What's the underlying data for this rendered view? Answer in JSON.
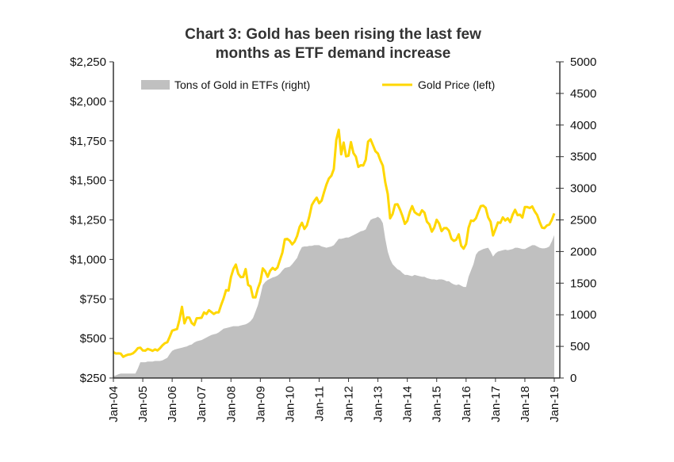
{
  "chart_data": {
    "type": "line+area",
    "title_lines": [
      "Chart 3: Gold has been rising the last few",
      "months as ETF demand increase"
    ],
    "x_ticks": [
      "Jan-04",
      "Jan-05",
      "Jan-06",
      "Jan-07",
      "Jan-08",
      "Jan-09",
      "Jan-10",
      "Jan-11",
      "Jan-12",
      "Jan-13",
      "Jan-14",
      "Jan-15",
      "Jan-16",
      "Jan-17",
      "Jan-18",
      "Jan-19"
    ],
    "x_range": [
      "Jan-04",
      "Jan-19"
    ],
    "y_left": {
      "ticks": [
        "$250",
        "$500",
        "$750",
        "$1,000",
        "$1,250",
        "$1,500",
        "$1,750",
        "$2,000",
        "$2,250"
      ],
      "range": [
        250,
        2250
      ]
    },
    "y_right": {
      "ticks": [
        "0",
        "500",
        "1000",
        "1500",
        "2000",
        "2500",
        "3000",
        "3500",
        "4000",
        "4500",
        "5000"
      ],
      "range": [
        0,
        5000
      ]
    },
    "legend_position": "top",
    "grid": false,
    "series": [
      {
        "name": "Tons of Gold in ETFs (right)",
        "kind": "area",
        "axis": "right",
        "color": "#c0c0c0",
        "frequency": "monthly from Jan-04",
        "values": [
          30,
          40,
          60,
          70,
          70,
          70,
          70,
          70,
          70,
          70,
          150,
          250,
          250,
          250,
          260,
          260,
          260,
          270,
          270,
          270,
          280,
          300,
          320,
          380,
          430,
          450,
          460,
          470,
          480,
          490,
          500,
          520,
          530,
          560,
          580,
          590,
          600,
          620,
          640,
          660,
          680,
          690,
          700,
          720,
          750,
          780,
          790,
          800,
          810,
          820,
          820,
          820,
          830,
          840,
          850,
          870,
          900,
          950,
          1050,
          1150,
          1300,
          1470,
          1520,
          1550,
          1570,
          1590,
          1600,
          1620,
          1650,
          1700,
          1740,
          1750,
          1760,
          1800,
          1850,
          1900,
          2000,
          2070,
          2080,
          2080,
          2090,
          2090,
          2100,
          2100,
          2100,
          2080,
          2070,
          2060,
          2070,
          2080,
          2100,
          2150,
          2200,
          2200,
          2210,
          2220,
          2220,
          2240,
          2260,
          2280,
          2300,
          2320,
          2330,
          2350,
          2430,
          2500,
          2520,
          2530,
          2550,
          2520,
          2450,
          2200,
          2000,
          1880,
          1800,
          1760,
          1720,
          1700,
          1660,
          1630,
          1630,
          1620,
          1610,
          1630,
          1620,
          1610,
          1600,
          1600,
          1580,
          1570,
          1560,
          1560,
          1550,
          1560,
          1560,
          1550,
          1530,
          1530,
          1500,
          1480,
          1470,
          1480,
          1460,
          1440,
          1440,
          1600,
          1700,
          1800,
          1950,
          2000,
          2020,
          2040,
          2050,
          2060,
          2000,
          1920,
          1970,
          2000,
          2010,
          2020,
          2030,
          2020,
          2030,
          2040,
          2060,
          2060,
          2050,
          2040,
          2040,
          2060,
          2080,
          2100,
          2100,
          2080,
          2060,
          2050,
          2050,
          2060,
          2080,
          2160,
          2260
        ]
      },
      {
        "name": "Gold Price (left)",
        "kind": "line",
        "axis": "left",
        "color": "#ffd700",
        "frequency": "monthly from Jan-04",
        "values": [
          414,
          405,
          406,
          404,
          384,
          392,
          398,
          400,
          406,
          420,
          439,
          442,
          424,
          423,
          434,
          429,
          422,
          431,
          424,
          438,
          456,
          470,
          476,
          510,
          549,
          555,
          560,
          620,
          700,
          596,
          633,
          632,
          598,
          585,
          628,
          629,
          631,
          665,
          655,
          679,
          667,
          655,
          665,
          665,
          712,
          754,
          806,
          803,
          889,
          940,
          968,
          909,
          888,
          889,
          939,
          839,
          829,
          760,
          760,
          816,
          858,
          943,
          924,
          890,
          928,
          946,
          934,
          949,
          996,
          1043,
          1127,
          1130,
          1118,
          1095,
          1113,
          1148,
          1205,
          1232,
          1193,
          1215,
          1271,
          1343,
          1370,
          1391,
          1356,
          1372,
          1424,
          1474,
          1512,
          1529,
          1572,
          1756,
          1820,
          1665,
          1739,
          1652,
          1656,
          1742,
          1673,
          1650,
          1585,
          1596,
          1594,
          1630,
          1745,
          1760,
          1722,
          1684,
          1670,
          1627,
          1593,
          1487,
          1414,
          1260,
          1287,
          1347,
          1349,
          1316,
          1275,
          1225,
          1244,
          1300,
          1337,
          1299,
          1287,
          1280,
          1311,
          1296,
          1239,
          1222,
          1176,
          1201,
          1251,
          1227,
          1179,
          1198,
          1199,
          1182,
          1131,
          1117,
          1125,
          1159,
          1086,
          1068,
          1097,
          1200,
          1246,
          1243,
          1260,
          1300,
          1337,
          1340,
          1326,
          1266,
          1238,
          1152,
          1192,
          1234,
          1231,
          1266,
          1246,
          1260,
          1236,
          1283,
          1314,
          1280,
          1283,
          1265,
          1331,
          1331,
          1325,
          1335,
          1304,
          1281,
          1238,
          1201,
          1198,
          1215,
          1221,
          1250,
          1291
        ]
      }
    ]
  }
}
